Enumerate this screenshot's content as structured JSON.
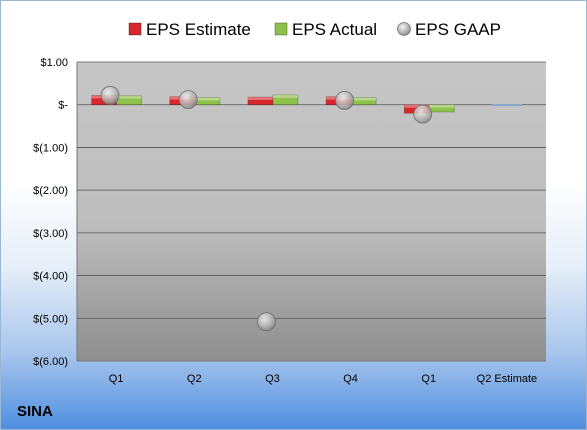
{
  "company": "SINA",
  "chart_data": {
    "type": "bar",
    "categories": [
      "Q1",
      "Q2",
      "Q3",
      "Q4",
      "Q1",
      "Q2 Estimate"
    ],
    "series": [
      {
        "name": "EPS Estimate",
        "values": [
          0.22,
          0.19,
          0.18,
          0.19,
          -0.2,
          0.0
        ],
        "color": "#d9262a"
      },
      {
        "name": "EPS Actual",
        "values": [
          0.21,
          0.17,
          0.23,
          0.17,
          -0.17,
          null
        ],
        "color": "#8fc24a"
      },
      {
        "name": "EPS GAAP",
        "values": [
          0.22,
          0.12,
          -5.08,
          0.1,
          -0.22,
          null
        ],
        "color": "#b8b8b8"
      }
    ],
    "ylim": [
      -6.0,
      1.0
    ],
    "y_ticks": [
      1.0,
      0.0,
      -1.0,
      -2.0,
      -3.0,
      -4.0,
      -5.0,
      -6.0
    ],
    "y_tick_labels": [
      "$1.00",
      "$-",
      "$(1.00)",
      "$(2.00)",
      "$(3.00)",
      "$(4.00)",
      "$(5.00)",
      "$(6.00)"
    ],
    "grid": true,
    "legend_position": "top"
  }
}
